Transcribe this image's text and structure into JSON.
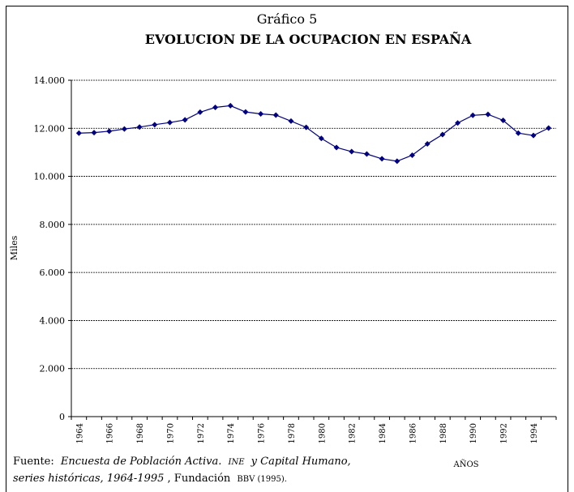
{
  "chart_data": {
    "type": "line",
    "title_top": "Gráfico 5",
    "title": "EVOLUCION DE LA OCUPACION EN ESPAÑA",
    "ylabel": "Miles",
    "xlabel": "AÑOS",
    "categories": [
      "1964",
      null,
      "1966",
      null,
      "1968",
      null,
      "1970",
      null,
      "1972",
      null,
      "1974",
      null,
      "1976",
      null,
      "1978",
      null,
      "1980",
      null,
      "1982",
      null,
      "1984",
      null,
      "1986",
      null,
      "1988",
      null,
      "1990",
      null,
      "1992",
      null,
      "1994",
      null
    ],
    "values": [
      11800,
      11820,
      11880,
      11970,
      12050,
      12150,
      12240,
      12350,
      12670,
      12870,
      12940,
      12680,
      12600,
      12550,
      12300,
      12040,
      11580,
      11200,
      11030,
      10930,
      10730,
      10630,
      10880,
      11350,
      11740,
      12220,
      12540,
      12580,
      12330,
      11800,
      11700,
      12010
    ],
    "color": "#000080",
    "ylim": [
      0,
      14000
    ],
    "yticks": [
      0,
      {
        "value": 2000,
        "label": "2.000"
      },
      {
        "value": 4000,
        "label": "4.000"
      },
      {
        "value": 6000,
        "label": "6.000"
      },
      {
        "value": 8000,
        "label": "8.000"
      },
      {
        "value": 10000,
        "label": "10.000"
      },
      {
        "value": 12000,
        "label": "12.000"
      },
      {
        "value": 14000,
        "label": "14.000"
      }
    ],
    "grid": true,
    "source": [
      [
        "Fuente:",
        "Encuesta de Población Activa.",
        "INE",
        "y Capital Humano,"
      ],
      [
        "series históricas, 1964-1995",
        ", Fundación",
        "BBV (1995)."
      ]
    ]
  }
}
